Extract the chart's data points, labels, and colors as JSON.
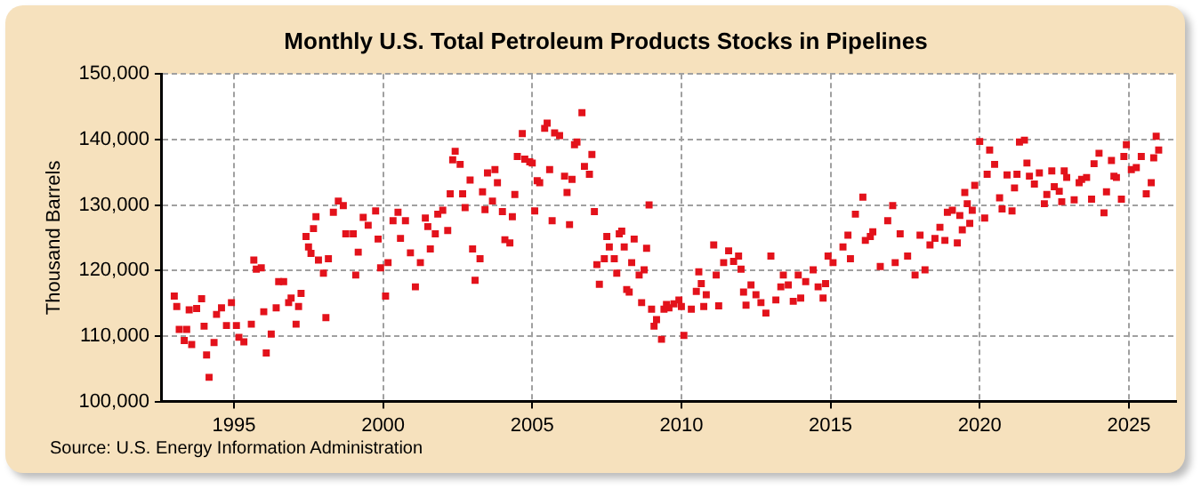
{
  "chart_data": {
    "type": "scatter",
    "title": "Monthly U.S. Total Petroleum Products Stocks in Pipelines",
    "ylabel": "Thousand Barrels",
    "annotations": [
      "Source: U.S. Energy Information Administration"
    ],
    "xlim": [
      "1992-08",
      "2026-08"
    ],
    "xticks": [
      "1995",
      "2000",
      "2005",
      "2010",
      "2015",
      "2020",
      "2025"
    ],
    "ylim": [
      100000,
      150000
    ],
    "yticks": [
      {
        "value": 100000,
        "label": "100,000"
      },
      {
        "value": 110000,
        "label": "110,000"
      },
      {
        "value": 120000,
        "label": "120,000"
      },
      {
        "value": 130000,
        "label": "130,000"
      },
      {
        "value": 140000,
        "label": "140,000"
      },
      {
        "value": 150000,
        "label": "150,000"
      }
    ],
    "grid": true,
    "legend": false,
    "marker": "square",
    "x": [
      "1993-01",
      "1993-02",
      "1993-03",
      "1993-05",
      "1993-06",
      "1993-07",
      "1993-08",
      "1993-10",
      "1993-12",
      "1994-01",
      "1994-02",
      "1994-03",
      "1994-05",
      "1994-06",
      "1994-08",
      "1994-10",
      "1994-12",
      "1995-02",
      "1995-03",
      "1995-05",
      "1995-08",
      "1995-09",
      "1995-10",
      "1995-12",
      "1996-01",
      "1996-02",
      "1996-04",
      "1996-06",
      "1996-07",
      "1996-09",
      "1996-11",
      "1996-12",
      "1997-02",
      "1997-03",
      "1997-04",
      "1997-06",
      "1997-07",
      "1997-08",
      "1997-09",
      "1997-10",
      "1997-11",
      "1998-01",
      "1998-02",
      "1998-03",
      "1998-05",
      "1998-07",
      "1998-09",
      "1998-10",
      "1999-01",
      "1999-02",
      "1999-03",
      "1999-05",
      "1999-07",
      "1999-10",
      "1999-11",
      "1999-12",
      "2000-02",
      "2000-03",
      "2000-05",
      "2000-07",
      "2000-08",
      "2000-10",
      "2000-12",
      "2001-02",
      "2001-04",
      "2001-06",
      "2001-07",
      "2001-08",
      "2001-10",
      "2001-11",
      "2002-01",
      "2002-03",
      "2002-04",
      "2002-05",
      "2002-06",
      "2002-08",
      "2002-09",
      "2002-10",
      "2002-12",
      "2003-01",
      "2003-02",
      "2003-04",
      "2003-05",
      "2003-06",
      "2003-07",
      "2003-09",
      "2003-10",
      "2003-11",
      "2004-01",
      "2004-02",
      "2004-04",
      "2004-05",
      "2004-06",
      "2004-07",
      "2004-09",
      "2004-10",
      "2004-12",
      "2005-01",
      "2005-02",
      "2005-03",
      "2005-04",
      "2005-06",
      "2005-07",
      "2005-08",
      "2005-09",
      "2005-10",
      "2005-12",
      "2006-02",
      "2006-03",
      "2006-04",
      "2006-05",
      "2006-06",
      "2006-07",
      "2006-09",
      "2006-10",
      "2006-12",
      "2007-01",
      "2007-02",
      "2007-03",
      "2007-04",
      "2007-06",
      "2007-07",
      "2007-08",
      "2007-10",
      "2007-11",
      "2007-12",
      "2008-01",
      "2008-02",
      "2008-03",
      "2008-04",
      "2008-05",
      "2008-06",
      "2008-08",
      "2008-09",
      "2008-10",
      "2008-11",
      "2008-12",
      "2009-01",
      "2009-02",
      "2009-03",
      "2009-05",
      "2009-06",
      "2009-07",
      "2009-08",
      "2009-10",
      "2009-12",
      "2010-01",
      "2010-02",
      "2010-05",
      "2010-07",
      "2010-08",
      "2010-09",
      "2010-10",
      "2010-11",
      "2011-02",
      "2011-03",
      "2011-04",
      "2011-06",
      "2011-08",
      "2011-10",
      "2011-12",
      "2012-01",
      "2012-02",
      "2012-03",
      "2012-05",
      "2012-07",
      "2012-09",
      "2012-11",
      "2013-01",
      "2013-03",
      "2013-05",
      "2013-06",
      "2013-08",
      "2013-10",
      "2013-12",
      "2014-01",
      "2014-03",
      "2014-06",
      "2014-08",
      "2014-10",
      "2014-11",
      "2014-12",
      "2015-02",
      "2015-06",
      "2015-08",
      "2015-09",
      "2015-11",
      "2016-02",
      "2016-03",
      "2016-05",
      "2016-06",
      "2016-09",
      "2016-12",
      "2017-02",
      "2017-03",
      "2017-05",
      "2017-08",
      "2017-11",
      "2018-01",
      "2018-03",
      "2018-05",
      "2018-07",
      "2018-09",
      "2018-11",
      "2018-12",
      "2019-02",
      "2019-04",
      "2019-05",
      "2019-06",
      "2019-07",
      "2019-08",
      "2019-09",
      "2019-10",
      "2019-11",
      "2020-01",
      "2020-03",
      "2020-04",
      "2020-05",
      "2020-07",
      "2020-09",
      "2020-10",
      "2020-12",
      "2021-02",
      "2021-03",
      "2021-04",
      "2021-05",
      "2021-07",
      "2021-08",
      "2021-09",
      "2021-11",
      "2022-01",
      "2022-03",
      "2022-04",
      "2022-06",
      "2022-07",
      "2022-09",
      "2022-10",
      "2022-11",
      "2022-12",
      "2023-03",
      "2023-05",
      "2023-06",
      "2023-08",
      "2023-10",
      "2023-11",
      "2024-01",
      "2024-03",
      "2024-04",
      "2024-06",
      "2024-07",
      "2024-08",
      "2024-10",
      "2024-11",
      "2024-12",
      "2025-02",
      "2025-04",
      "2025-06",
      "2025-08",
      "2025-10",
      "2025-11",
      "2025-12",
      "2026-01"
    ],
    "series": [
      {
        "color": "#e3121b",
        "values": [
          116100,
          114500,
          111000,
          109300,
          111000,
          114000,
          108700,
          114200,
          115700,
          111500,
          107100,
          103700,
          109000,
          113300,
          114300,
          111600,
          115100,
          111600,
          109800,
          109100,
          111800,
          121600,
          120200,
          120400,
          113700,
          107400,
          110300,
          114300,
          118300,
          118300,
          115100,
          115800,
          111800,
          114500,
          116500,
          125200,
          123600,
          122600,
          126400,
          128200,
          121600,
          119600,
          112800,
          121800,
          128900,
          130600,
          129900,
          125600,
          125600,
          119300,
          122800,
          128100,
          126900,
          129100,
          124800,
          120400,
          116100,
          121200,
          127600,
          128900,
          124900,
          127600,
          122700,
          117500,
          121200,
          128000,
          126700,
          123300,
          125600,
          128600,
          129200,
          126100,
          131700,
          136900,
          138200,
          136200,
          131700,
          129600,
          133800,
          123300,
          118500,
          121800,
          132000,
          129300,
          134900,
          130600,
          135400,
          133400,
          129000,
          124700,
          124200,
          128200,
          131600,
          137400,
          140900,
          137000,
          136600,
          136400,
          129100,
          133700,
          133400,
          141700,
          142500,
          135400,
          127600,
          141000,
          140600,
          134400,
          131900,
          127000,
          133900,
          139200,
          139600,
          144100,
          135900,
          134700,
          137700,
          129000,
          120900,
          117900,
          121800,
          125200,
          123600,
          121800,
          119600,
          125600,
          126000,
          123600,
          117100,
          116700,
          121200,
          124800,
          119300,
          115100,
          120100,
          123400,
          130000,
          114100,
          111500,
          112500,
          109500,
          114100,
          114800,
          114300,
          114900,
          115500,
          114500,
          110100,
          114100,
          116800,
          119800,
          118000,
          114500,
          116300,
          123900,
          119300,
          114600,
          121200,
          123000,
          121400,
          122200,
          120200,
          116700,
          114700,
          117800,
          116300,
          115100,
          113500,
          122200,
          115500,
          117500,
          119300,
          117800,
          115300,
          119300,
          115800,
          118300,
          120100,
          117500,
          115800,
          118000,
          122200,
          121200,
          123600,
          125400,
          121800,
          128600,
          131200,
          124600,
          125200,
          125900,
          120600,
          127600,
          129900,
          121200,
          125600,
          122200,
          119300,
          125400,
          120100,
          123900,
          124900,
          126600,
          124600,
          128900,
          129200,
          124200,
          128400,
          126200,
          131900,
          130200,
          127200,
          129200,
          133000,
          139700,
          128000,
          134700,
          138400,
          136200,
          131100,
          129400,
          134600,
          129100,
          132600,
          134700,
          139600,
          139900,
          136400,
          134400,
          133200,
          134900,
          130200,
          131600,
          135200,
          132800,
          132100,
          130500,
          135200,
          134200,
          130800,
          133400,
          133900,
          134200,
          130900,
          136300,
          137900,
          128800,
          132000,
          136800,
          134400,
          134200,
          130900,
          137400,
          139200,
          135400,
          135700,
          137400,
          131700,
          133400,
          137200,
          140500,
          138400
        ]
      }
    ]
  }
}
